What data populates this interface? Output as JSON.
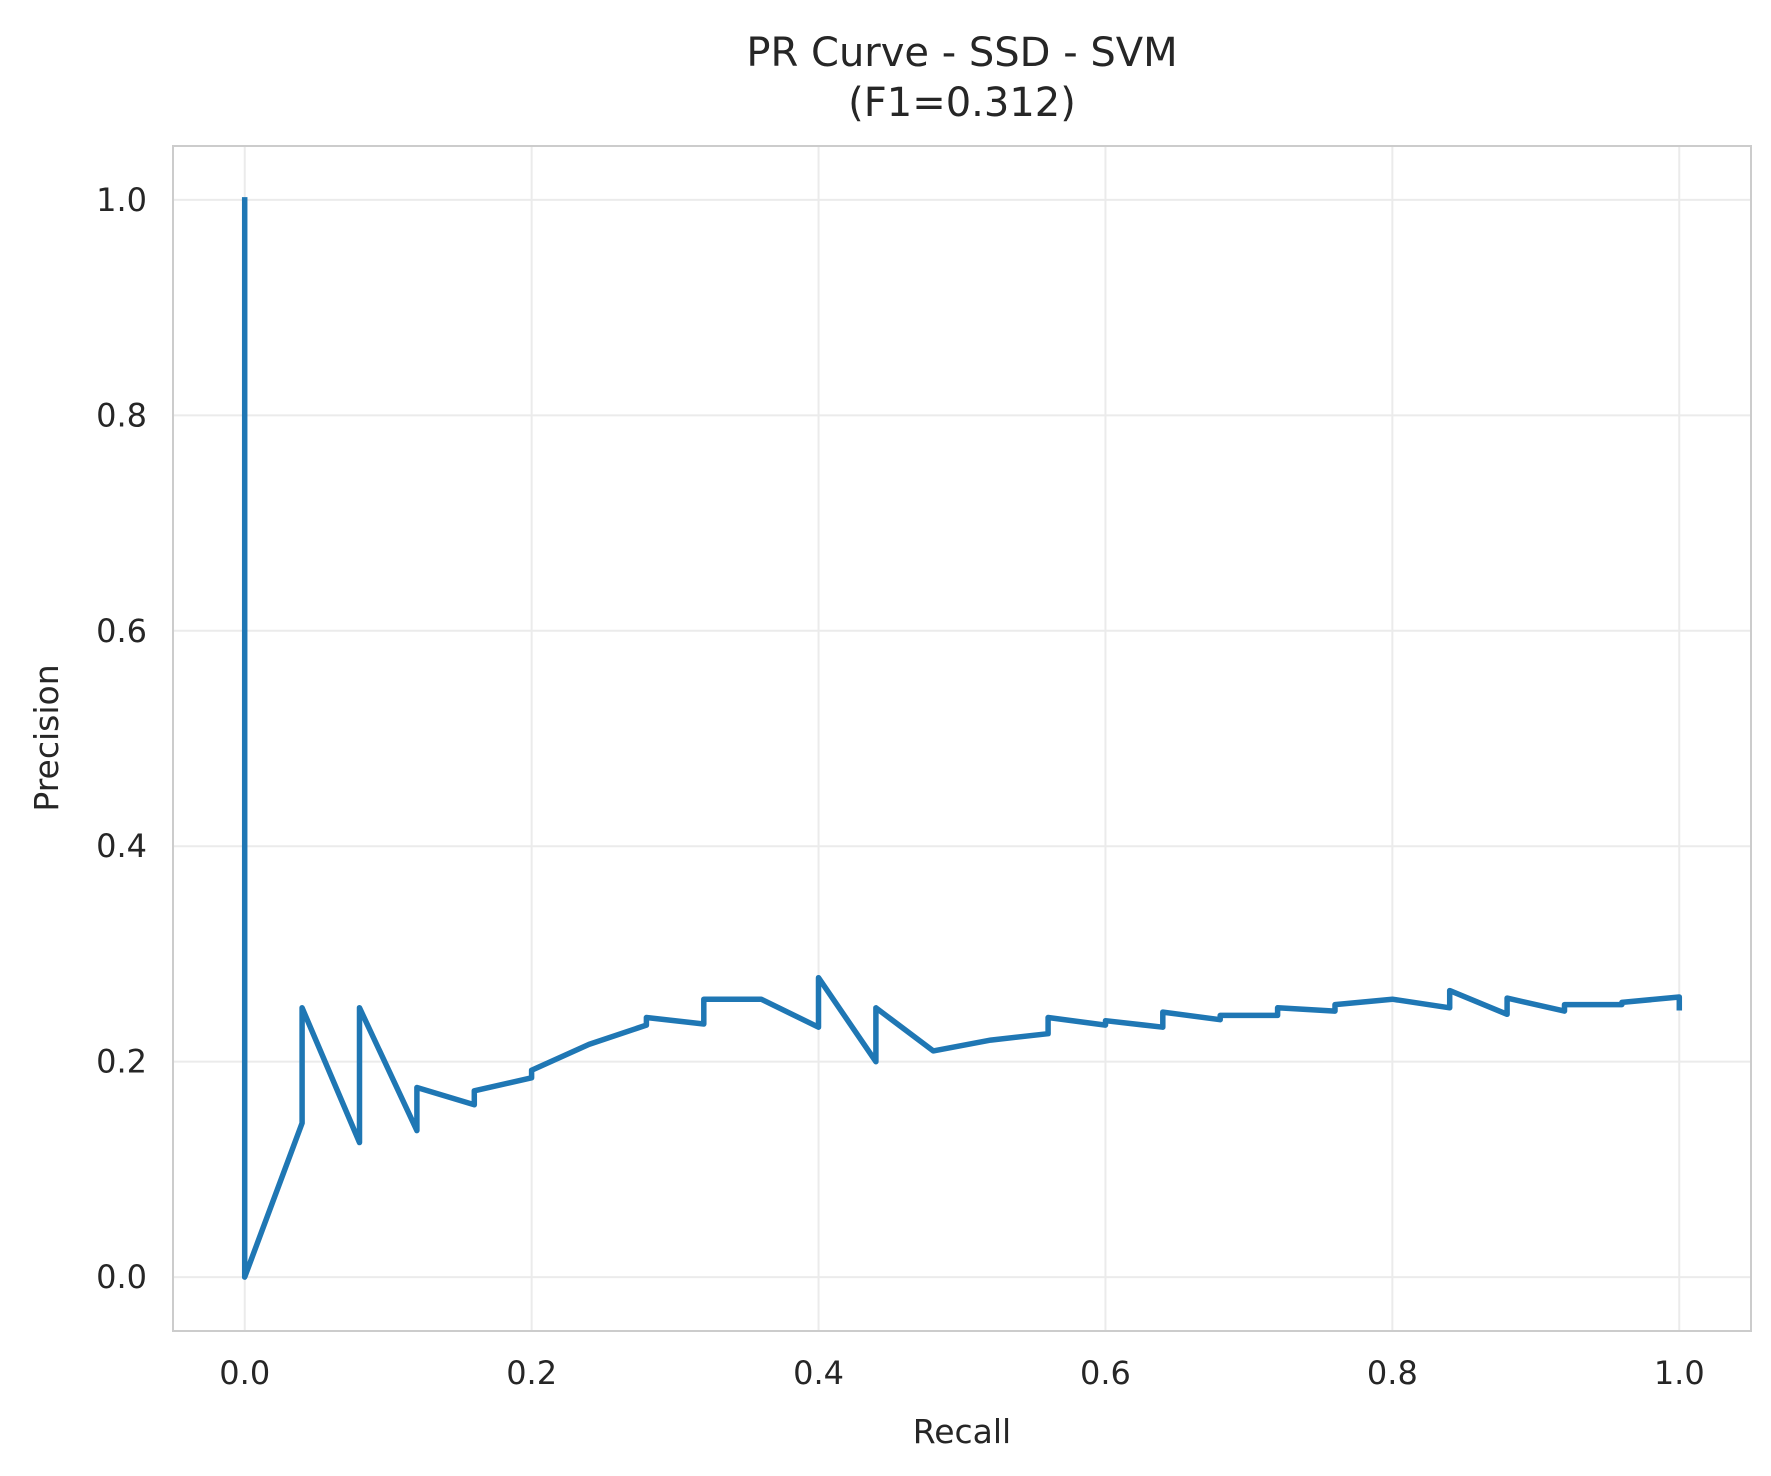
{
  "chart_data": {
    "type": "line",
    "title": "PR Curve - SSD - SVM",
    "subtitle": "(F1=0.312)",
    "xlabel": "Recall",
    "ylabel": "Precision",
    "xlim": [
      -0.05,
      1.05
    ],
    "ylim": [
      -0.05,
      1.05
    ],
    "xticks": [
      0.0,
      0.2,
      0.4,
      0.6,
      0.8,
      1.0
    ],
    "xtick_labels": [
      "0.0",
      "0.2",
      "0.4",
      "0.6",
      "0.8",
      "1.0"
    ],
    "yticks": [
      0.0,
      0.2,
      0.4,
      0.6,
      0.8,
      1.0
    ],
    "ytick_labels": [
      "0.0",
      "0.2",
      "0.4",
      "0.6",
      "0.8",
      "1.0"
    ],
    "grid": true,
    "legend": false,
    "colors": {
      "line": "#1f77b4",
      "grid": "#ebebeb",
      "frame": "#cccccc",
      "text": "#262626"
    },
    "series": [
      {
        "x": [
          1.0,
          1.0,
          0.96,
          0.96,
          0.92,
          0.92,
          0.88,
          0.88,
          0.84,
          0.84,
          0.8,
          0.76,
          0.76,
          0.72,
          0.72,
          0.68,
          0.68,
          0.64,
          0.64,
          0.6,
          0.6,
          0.56,
          0.56,
          0.52,
          0.48,
          0.44,
          0.44,
          0.4,
          0.4,
          0.36,
          0.32,
          0.32,
          0.28,
          0.28,
          0.24,
          0.2,
          0.2,
          0.16,
          0.16,
          0.12,
          0.12,
          0.08,
          0.08,
          0.04,
          0.04,
          0.0,
          0.0
        ],
        "y": [
          0.25,
          0.26,
          0.255,
          0.253,
          0.253,
          0.247,
          0.259,
          0.244,
          0.266,
          0.25,
          0.258,
          0.253,
          0.247,
          0.25,
          0.243,
          0.243,
          0.239,
          0.246,
          0.232,
          0.238,
          0.234,
          0.241,
          0.226,
          0.22,
          0.21,
          0.25,
          0.2,
          0.278,
          0.232,
          0.258,
          0.258,
          0.235,
          0.241,
          0.234,
          0.216,
          0.192,
          0.185,
          0.173,
          0.16,
          0.176,
          0.136,
          0.25,
          0.125,
          0.25,
          0.143,
          0.0,
          1.0
        ]
      }
    ]
  }
}
